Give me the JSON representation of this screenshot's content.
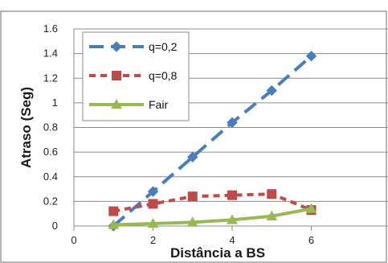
{
  "chart_data": {
    "type": "line",
    "title": "",
    "xlabel": "Distância a BS",
    "ylabel": "Atraso (Seg)",
    "xlim": [
      0,
      8
    ],
    "ylim": [
      0,
      1.6
    ],
    "x_ticks": [
      0,
      2,
      4,
      6,
      8
    ],
    "x_tick_labels": [
      "0",
      "2",
      "4",
      "6",
      "8"
    ],
    "y_ticks": [
      0,
      0.2,
      0.4,
      0.6,
      0.8,
      1,
      1.2,
      1.4,
      1.6
    ],
    "y_tick_labels": [
      "0",
      "0.2",
      "0.4",
      "0.6",
      "0.8",
      "1",
      "1.2",
      "1.4",
      "1.6"
    ],
    "grid": "horizontal",
    "legend_position": "top-left",
    "series": [
      {
        "name": "q=0,2",
        "color": "#4a7ebb",
        "dash": "long-dash",
        "marker": "diamond",
        "x": [
          1,
          2,
          3,
          4,
          5,
          6
        ],
        "values": [
          0.0,
          0.28,
          0.56,
          0.84,
          1.1,
          1.38
        ]
      },
      {
        "name": "q=0,8",
        "color": "#be4b48",
        "dash": "short-dash",
        "marker": "square",
        "x": [
          1,
          2,
          3,
          4,
          5,
          6
        ],
        "values": [
          0.12,
          0.18,
          0.24,
          0.25,
          0.26,
          0.13
        ]
      },
      {
        "name": "Fair",
        "color": "#98b954",
        "dash": "solid",
        "marker": "triangle",
        "x": [
          1,
          2,
          3,
          4,
          5,
          6
        ],
        "values": [
          0.01,
          0.02,
          0.03,
          0.05,
          0.08,
          0.14
        ]
      }
    ]
  }
}
